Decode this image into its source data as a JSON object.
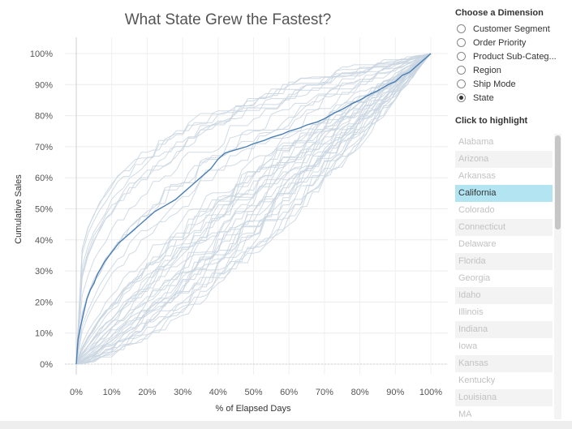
{
  "title": "What State Grew the Fastest?",
  "chart_data": {
    "type": "line",
    "title": "What State Grew the Fastest?",
    "xlabel": "% of Elapsed Days",
    "ylabel": "Cumulative Sales",
    "xlim": [
      0,
      100
    ],
    "ylim": [
      0,
      100
    ],
    "x_ticks": [
      "0%",
      "10%",
      "20%",
      "30%",
      "40%",
      "50%",
      "60%",
      "70%",
      "80%",
      "90%",
      "100%"
    ],
    "y_ticks": [
      "0%",
      "10%",
      "20%",
      "30%",
      "40%",
      "50%",
      "60%",
      "70%",
      "80%",
      "90%",
      "100%"
    ],
    "grid": true,
    "background_color": "#c9d5e1",
    "highlight_color": "#4a7fb4",
    "highlighted_series": {
      "name": "California",
      "x": [
        0,
        0.5,
        1,
        2,
        3,
        4,
        5,
        6,
        7,
        8,
        10,
        12,
        14,
        16,
        18,
        20,
        22,
        25,
        28,
        30,
        33,
        35,
        38,
        40,
        42,
        45,
        48,
        50,
        53,
        55,
        58,
        60,
        63,
        65,
        68,
        70,
        73,
        75,
        78,
        80,
        83,
        85,
        88,
        90,
        92,
        94,
        96,
        98,
        100
      ],
      "values": [
        0,
        8,
        11,
        16,
        21,
        24,
        26,
        29,
        31,
        33,
        36,
        39,
        41,
        43,
        45,
        47,
        49,
        51,
        53,
        55,
        58,
        60,
        63,
        66,
        68,
        69,
        70,
        71,
        72,
        73,
        74,
        75,
        76,
        77,
        78,
        79,
        81,
        82,
        84,
        85,
        87,
        88,
        90,
        91,
        93,
        94,
        96,
        98,
        100
      ]
    }
  },
  "panel": {
    "dimension_heading": "Choose a Dimension",
    "dimension_options": [
      {
        "label": "Customer Segment",
        "checked": false
      },
      {
        "label": "Order Priority",
        "checked": false
      },
      {
        "label": "Product Sub-Categ...",
        "checked": false
      },
      {
        "label": "Region",
        "checked": false
      },
      {
        "label": "Ship Mode",
        "checked": false
      },
      {
        "label": "State",
        "checked": true
      }
    ],
    "highlight_heading": "Click to highlight",
    "states": [
      "Alabama",
      "Arizona",
      "Arkansas",
      "California",
      "Colorado",
      "Connecticut",
      "Delaware",
      "Florida",
      "Georgia",
      "Idaho",
      "Illinois",
      "Indiana",
      "Iowa",
      "Kansas",
      "Kentucky",
      "Louisiana",
      "MA"
    ],
    "selected_state": "California"
  }
}
